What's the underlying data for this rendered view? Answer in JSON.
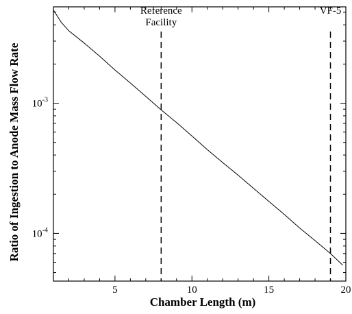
{
  "chart_data": {
    "type": "line",
    "title": "",
    "xlabel": "Chamber Length (m)",
    "ylabel": "Ratio of Ingestion to Anode Mass Flow Rate",
    "xlim": [
      1,
      20
    ],
    "ylim": [
      4.3e-05,
      0.0055
    ],
    "y_scale": "log",
    "grid": false,
    "x_ticks": [
      5,
      10,
      15,
      20
    ],
    "y_ticks": [
      {
        "value": 0.001,
        "base": "10",
        "exponent": "-3"
      },
      {
        "value": 0.0001,
        "base": "10",
        "exponent": "-4"
      }
    ],
    "series": [
      {
        "x": [
          1.0,
          1.5,
          2.0,
          3.0,
          4.0,
          5.0,
          6.0,
          7.0,
          8.0,
          9.0,
          10.0,
          11.0,
          12.0,
          13.0,
          14.0,
          15.0,
          16.0,
          17.0,
          18.0,
          19.0,
          19.8
        ],
        "y": [
          0.0052,
          0.0042,
          0.0036,
          0.0029,
          0.0023,
          0.0018,
          0.00143,
          0.00113,
          0.00089,
          0.00071,
          0.00056,
          0.00044,
          0.00035,
          0.00028,
          0.000222,
          0.000176,
          0.00014,
          0.00011,
          8.8e-05,
          7e-05,
          5.7e-05
        ]
      }
    ],
    "annotations": [
      {
        "x": 8,
        "label_lines": [
          "Reference",
          "Facility"
        ],
        "style": "dashed-vertical"
      },
      {
        "x": 19,
        "label_lines": [
          "VF-5"
        ],
        "style": "dashed-vertical"
      }
    ]
  }
}
